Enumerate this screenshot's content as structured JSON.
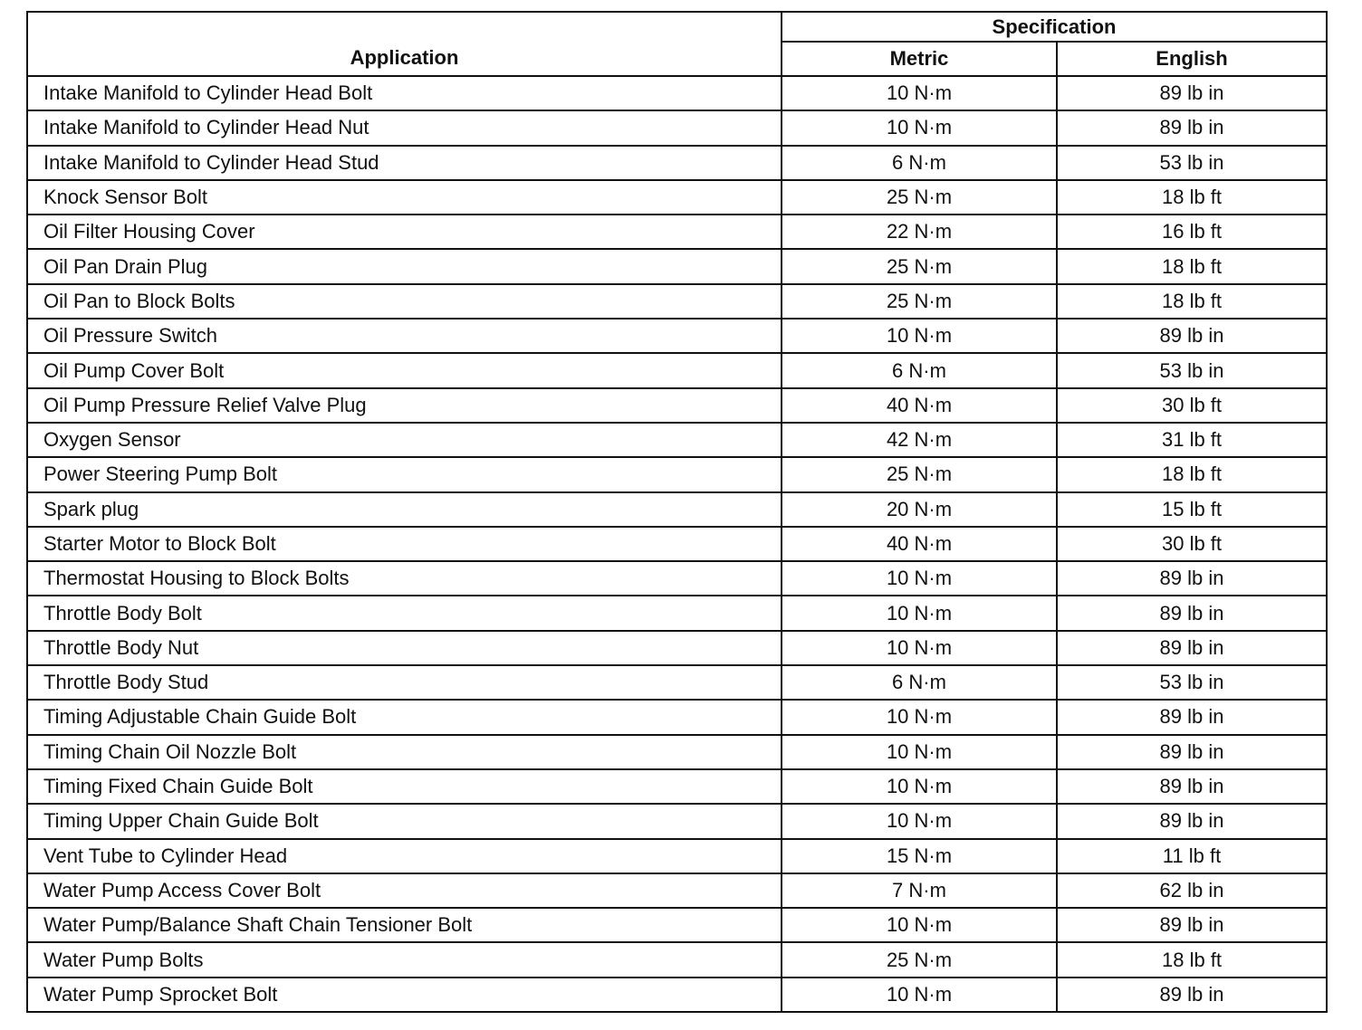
{
  "header": {
    "application": "Application",
    "specification": "Specification",
    "metric": "Metric",
    "english": "English"
  },
  "rows": [
    {
      "application": "Intake Manifold to Cylinder Head Bolt",
      "metric": "10 N·m",
      "english": "89 lb in"
    },
    {
      "application": "Intake Manifold to Cylinder Head Nut",
      "metric": "10 N·m",
      "english": "89 lb in"
    },
    {
      "application": "Intake Manifold to Cylinder Head Stud",
      "metric": "6 N·m",
      "english": "53 lb in"
    },
    {
      "application": "Knock Sensor Bolt",
      "metric": "25 N·m",
      "english": "18 lb ft"
    },
    {
      "application": "Oil Filter Housing Cover",
      "metric": "22 N·m",
      "english": "16 lb ft"
    },
    {
      "application": "Oil Pan Drain Plug",
      "metric": "25 N·m",
      "english": "18 lb ft"
    },
    {
      "application": "Oil Pan to Block Bolts",
      "metric": "25 N·m",
      "english": "18 lb ft"
    },
    {
      "application": "Oil Pressure Switch",
      "metric": "10 N·m",
      "english": "89 lb in"
    },
    {
      "application": "Oil Pump Cover Bolt",
      "metric": "6 N·m",
      "english": "53 lb in"
    },
    {
      "application": "Oil Pump Pressure Relief Valve Plug",
      "metric": "40 N·m",
      "english": "30 lb ft"
    },
    {
      "application": "Oxygen Sensor",
      "metric": "42 N·m",
      "english": "31 lb ft"
    },
    {
      "application": "Power Steering Pump Bolt",
      "metric": "25 N·m",
      "english": "18 lb ft"
    },
    {
      "application": "Spark plug",
      "metric": "20 N·m",
      "english": "15 lb ft"
    },
    {
      "application": "Starter Motor to Block Bolt",
      "metric": "40 N·m",
      "english": "30 lb ft"
    },
    {
      "application": "Thermostat Housing to Block Bolts",
      "metric": "10 N·m",
      "english": "89 lb in"
    },
    {
      "application": "Throttle Body Bolt",
      "metric": "10 N·m",
      "english": "89 lb in"
    },
    {
      "application": "Throttle Body Nut",
      "metric": "10 N·m",
      "english": "89 lb in"
    },
    {
      "application": "Throttle Body Stud",
      "metric": "6 N·m",
      "english": "53 lb in"
    },
    {
      "application": "Timing Adjustable Chain Guide Bolt",
      "metric": "10 N·m",
      "english": "89 lb in"
    },
    {
      "application": "Timing Chain Oil Nozzle Bolt",
      "metric": "10 N·m",
      "english": "89 lb in"
    },
    {
      "application": "Timing Fixed Chain Guide Bolt",
      "metric": "10 N·m",
      "english": "89 lb in"
    },
    {
      "application": "Timing Upper Chain Guide Bolt",
      "metric": "10 N·m",
      "english": "89 lb in"
    },
    {
      "application": "Vent Tube to Cylinder Head",
      "metric": "15 N·m",
      "english": "11 lb ft"
    },
    {
      "application": "Water Pump Access Cover Bolt",
      "metric": "7 N·m",
      "english": "62 lb in"
    },
    {
      "application": "Water Pump/Balance Shaft Chain Tensioner Bolt",
      "metric": "10 N·m",
      "english": "89 lb in"
    },
    {
      "application": "Water Pump Bolts",
      "metric": "25 N·m",
      "english": "18 lb ft"
    },
    {
      "application": "Water Pump Sprocket Bolt",
      "metric": "10 N·m",
      "english": "89 lb in"
    }
  ]
}
